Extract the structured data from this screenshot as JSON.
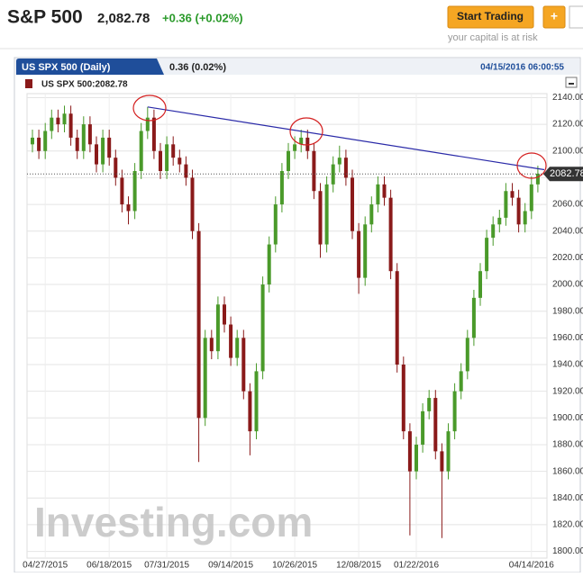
{
  "header": {
    "symbol": "S&P 500",
    "price": "2,082.78",
    "change": "+0.36 (+0.02%)",
    "button": "Start Trading",
    "risk_note": "your capital is at risk"
  },
  "chart_data": {
    "type": "candlestick",
    "title": "US SPX 500 (Daily)",
    "change_label": "0.36 (0.02%)",
    "timestamp": "04/15/2016 06:00:55",
    "legend_label": "US SPX 500:2082.78",
    "watermark": "Investing.com",
    "last_price": 2082.78,
    "up_color": "#4a9a2a",
    "down_color": "#8a1a1a",
    "trendline_color": "#2a2aa8",
    "trendline": {
      "from": [
        18,
        2133
      ],
      "to": [
        80,
        2086
      ]
    },
    "categories": [
      null,
      null,
      "04/27/2015",
      null,
      null,
      null,
      null,
      null,
      null,
      null,
      null,
      null,
      "06/18/2015",
      null,
      null,
      null,
      null,
      null,
      null,
      null,
      null,
      "07/31/2015",
      null,
      null,
      null,
      null,
      null,
      null,
      null,
      null,
      null,
      "09/14/2015",
      null,
      null,
      null,
      null,
      null,
      null,
      null,
      null,
      null,
      "10/26/2015",
      null,
      null,
      null,
      null,
      null,
      null,
      null,
      null,
      null,
      "12/08/2015",
      null,
      null,
      null,
      null,
      null,
      null,
      null,
      null,
      "01/22/2016",
      null,
      null,
      null,
      null,
      null,
      null,
      null,
      null,
      null,
      null,
      null,
      null,
      null,
      null,
      null,
      null,
      null,
      "04/14/2016",
      null
    ],
    "open": [
      2105,
      2110,
      2100,
      2115,
      2125,
      2120,
      2128,
      2110,
      2100,
      2120,
      2105,
      2090,
      2110,
      2095,
      2080,
      2060,
      2055,
      2085,
      2115,
      2125,
      2100,
      2085,
      2105,
      2095,
      2090,
      2080,
      2040,
      1900,
      1960,
      1950,
      1985,
      1970,
      1945,
      1960,
      1920,
      1890,
      1935,
      2000,
      2030,
      2060,
      2085,
      2100,
      2105,
      2110,
      2100,
      2070,
      2030,
      2075,
      2090,
      2095,
      2080,
      2040,
      2005,
      2045,
      2060,
      2075,
      2065,
      2010,
      1940,
      1890,
      1860,
      1880,
      1905,
      1915,
      1875,
      1860,
      1890,
      1920,
      1935,
      1960,
      1990,
      2010,
      2035,
      2045,
      2050,
      2070,
      2065,
      2045,
      2055,
      2075
    ],
    "high": [
      2116,
      2116,
      2121,
      2131,
      2131,
      2134,
      2134,
      2116,
      2126,
      2126,
      2111,
      2116,
      2116,
      2101,
      2086,
      2066,
      2091,
      2121,
      2133,
      2131,
      2106,
      2111,
      2111,
      2101,
      2096,
      2086,
      2046,
      1966,
      1966,
      1991,
      1991,
      1976,
      1966,
      1966,
      1926,
      1941,
      2006,
      2036,
      2066,
      2091,
      2106,
      2111,
      2116,
      2116,
      2106,
      2076,
      2081,
      2096,
      2104,
      2101,
      2086,
      2046,
      2051,
      2066,
      2081,
      2081,
      2071,
      2016,
      1946,
      1896,
      1886,
      1911,
      1921,
      1921,
      1881,
      1896,
      1926,
      1941,
      1966,
      1996,
      2016,
      2041,
      2051,
      2056,
      2076,
      2076,
      2071,
      2061,
      2081,
      2089
    ],
    "low": [
      2099,
      2094,
      2094,
      2109,
      2114,
      2114,
      2104,
      2094,
      2094,
      2099,
      2084,
      2084,
      2089,
      2074,
      2054,
      2045,
      2049,
      2079,
      2109,
      2094,
      2079,
      2079,
      2089,
      2084,
      2074,
      2034,
      1867,
      1894,
      1944,
      1944,
      1964,
      1939,
      1939,
      1914,
      1872,
      1884,
      1929,
      1994,
      2024,
      2054,
      2079,
      2094,
      2099,
      2094,
      2064,
      2020,
      2024,
      2069,
      2084,
      2074,
      2034,
      1993,
      1999,
      2039,
      2054,
      2059,
      2004,
      1934,
      1884,
      1812,
      1854,
      1874,
      1899,
      1869,
      1810,
      1854,
      1884,
      1914,
      1929,
      1954,
      1984,
      2004,
      2029,
      2039,
      2044,
      2059,
      2039,
      2039,
      2049,
      2069
    ],
    "close": [
      2110,
      2100,
      2115,
      2125,
      2120,
      2128,
      2110,
      2100,
      2120,
      2105,
      2090,
      2110,
      2095,
      2080,
      2060,
      2055,
      2085,
      2115,
      2125,
      2100,
      2085,
      2105,
      2095,
      2090,
      2080,
      2040,
      1900,
      1960,
      1950,
      1985,
      1970,
      1945,
      1960,
      1920,
      1890,
      1935,
      2000,
      2030,
      2060,
      2085,
      2100,
      2105,
      2110,
      2100,
      2070,
      2030,
      2075,
      2090,
      2095,
      2080,
      2040,
      2005,
      2045,
      2060,
      2075,
      2065,
      2010,
      1940,
      1890,
      1860,
      1880,
      1905,
      1915,
      1875,
      1860,
      1890,
      1920,
      1935,
      1960,
      1990,
      2010,
      2035,
      2045,
      2050,
      2070,
      2065,
      2045,
      2055,
      2075,
      2083
    ],
    "ylim": [
      1795,
      2143
    ],
    "yticks": [
      {
        "value": 2140,
        "label": "2140.00"
      },
      {
        "value": 2120,
        "label": "2120.00"
      },
      {
        "value": 2100,
        "label": "2100.00"
      },
      {
        "value": 2080,
        "label": "2080.00"
      },
      {
        "value": 2060,
        "label": "2060.00"
      },
      {
        "value": 2040,
        "label": "2040.00"
      },
      {
        "value": 2020,
        "label": "2020.00"
      },
      {
        "value": 2000,
        "label": "2000.00"
      },
      {
        "value": 1980,
        "label": "1980.00"
      },
      {
        "value": 1960,
        "label": "1960.00"
      },
      {
        "value": 1940,
        "label": "1940.00"
      },
      {
        "value": 1920,
        "label": "1920.00"
      },
      {
        "value": 1900,
        "label": "1900.00"
      },
      {
        "value": 1880,
        "label": "1880.00"
      },
      {
        "value": 1860,
        "label": "1860.00"
      },
      {
        "value": 1840,
        "label": "1840.00"
      },
      {
        "value": 1820,
        "label": "1820.00"
      },
      {
        "value": 1800,
        "label": "1800.00"
      }
    ],
    "grid": true
  }
}
